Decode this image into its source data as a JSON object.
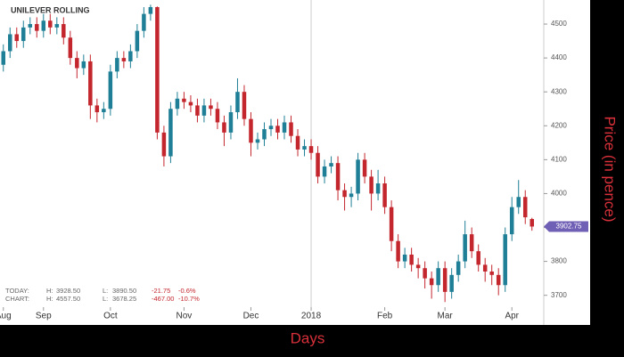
{
  "chart_data": {
    "type": "candlestick",
    "title": "UNILEVER ROLLING",
    "x_label": "Days",
    "y_label": "Price (in pence)",
    "up_color": "#1f7f96",
    "down_color": "#c4262e",
    "x": [
      0,
      1,
      2,
      3,
      4,
      5,
      6,
      7,
      8,
      9,
      10,
      11,
      12,
      13,
      14,
      15,
      16,
      17,
      18,
      19,
      20,
      21,
      22,
      23,
      24,
      25,
      26,
      27,
      28,
      29,
      30,
      31,
      32,
      33,
      34,
      35,
      36,
      37,
      38,
      39,
      40,
      41,
      42,
      43,
      44,
      45,
      46,
      47,
      48,
      49,
      50,
      51,
      52,
      53,
      54,
      55,
      56,
      57,
      58,
      59,
      60,
      61,
      62,
      63,
      64,
      65,
      66,
      67,
      68,
      69,
      70,
      71,
      72,
      73,
      74,
      75,
      76,
      77,
      78,
      79
    ],
    "open": [
      4380,
      4420,
      4470,
      4450,
      4490,
      4500,
      4480,
      4510,
      4490,
      4500,
      4460,
      4400,
      4370,
      4390,
      4260,
      4240,
      4250,
      4360,
      4400,
      4390,
      4420,
      4480,
      4530,
      4550,
      4180,
      4110,
      4250,
      4280,
      4270,
      4260,
      4230,
      4260,
      4250,
      4210,
      4180,
      4240,
      4300,
      4220,
      4150,
      4160,
      4190,
      4200,
      4180,
      4210,
      4170,
      4130,
      4140,
      4120,
      4050,
      4080,
      4090,
      4010,
      3990,
      4000,
      4100,
      4050,
      4000,
      4030,
      3960,
      3860,
      3800,
      3820,
      3790,
      3780,
      3750,
      3730,
      3780,
      3710,
      3760,
      3800,
      3880,
      3830,
      3790,
      3770,
      3760,
      3730,
      3880,
      3960,
      3990,
      3925
    ],
    "high": [
      4440,
      4490,
      4490,
      4510,
      4520,
      4520,
      4530,
      4530,
      4520,
      4520,
      4480,
      4420,
      4410,
      4410,
      4280,
      4270,
      4380,
      4420,
      4420,
      4440,
      4500,
      4550,
      4557,
      4552,
      4200,
      4270,
      4300,
      4300,
      4290,
      4280,
      4280,
      4280,
      4270,
      4230,
      4260,
      4340,
      4320,
      4240,
      4180,
      4210,
      4220,
      4220,
      4230,
      4230,
      4190,
      4160,
      4160,
      4140,
      4100,
      4110,
      4110,
      4030,
      4020,
      4120,
      4120,
      4070,
      4070,
      4050,
      3980,
      3880,
      3840,
      3840,
      3810,
      3800,
      3770,
      3800,
      3800,
      3780,
      3820,
      3920,
      3900,
      3850,
      3810,
      3790,
      3780,
      3900,
      3990,
      4040,
      4010,
      3928.5
    ],
    "low": [
      4360,
      4400,
      4430,
      4430,
      4470,
      4460,
      4460,
      4470,
      4470,
      4440,
      4380,
      4340,
      4350,
      4220,
      4210,
      4220,
      4230,
      4340,
      4370,
      4370,
      4400,
      4460,
      4510,
      4160,
      4080,
      4090,
      4230,
      4250,
      4240,
      4210,
      4210,
      4230,
      4190,
      4140,
      4160,
      4220,
      4200,
      4110,
      4130,
      4140,
      4170,
      4160,
      4160,
      4150,
      4110,
      4110,
      4100,
      4030,
      4030,
      4060,
      3980,
      3950,
      3960,
      3980,
      4030,
      3950,
      3980,
      3940,
      3830,
      3780,
      3780,
      3770,
      3750,
      3720,
      3690,
      3710,
      3680,
      3690,
      3740,
      3780,
      3810,
      3770,
      3740,
      3730,
      3700,
      3710,
      3860,
      3940,
      3910,
      3890.5
    ],
    "close": [
      4420,
      4470,
      4450,
      4490,
      4500,
      4480,
      4510,
      4490,
      4500,
      4460,
      4400,
      4370,
      4390,
      4260,
      4240,
      4250,
      4360,
      4400,
      4390,
      4420,
      4480,
      4530,
      4550,
      4180,
      4110,
      4250,
      4280,
      4270,
      4260,
      4230,
      4260,
      4250,
      4210,
      4180,
      4240,
      4300,
      4220,
      4150,
      4160,
      4190,
      4200,
      4180,
      4210,
      4170,
      4130,
      4140,
      4120,
      4050,
      4080,
      4090,
      4010,
      3990,
      4000,
      4100,
      4050,
      4000,
      4030,
      3960,
      3860,
      3800,
      3820,
      3790,
      3780,
      3750,
      3730,
      3780,
      3710,
      3760,
      3800,
      3880,
      3830,
      3790,
      3770,
      3760,
      3730,
      3880,
      3960,
      3990,
      3930,
      3902.75
    ],
    "last_price": 3902.75,
    "last_price_color": "#6f5fb5",
    "xlim": [
      -0.5,
      80.5
    ],
    "ylim": [
      3665,
      4571
    ],
    "xticks": [
      {
        "value": 0,
        "label": "Aug"
      },
      {
        "value": 6,
        "label": "Sep"
      },
      {
        "value": 16,
        "label": "Oct"
      },
      {
        "value": 27,
        "label": "Nov"
      },
      {
        "value": 37,
        "label": "Dec"
      },
      {
        "value": 46,
        "label": "2018"
      },
      {
        "value": 57,
        "label": "Feb"
      },
      {
        "value": 66,
        "label": "Mar"
      },
      {
        "value": 76,
        "label": "Apr"
      }
    ],
    "yticks": [
      3700,
      3800,
      3900,
      4000,
      4100,
      4200,
      4300,
      4400,
      4500
    ],
    "info_rows": [
      [
        "TODAY:",
        "H:",
        "3928.50",
        "L:",
        "3890.50",
        "-21.75",
        "-0.6%"
      ],
      [
        "CHART:",
        "H:",
        "4557.50",
        "L:",
        "3678.25",
        "-467.00",
        "-10.7%"
      ]
    ]
  }
}
